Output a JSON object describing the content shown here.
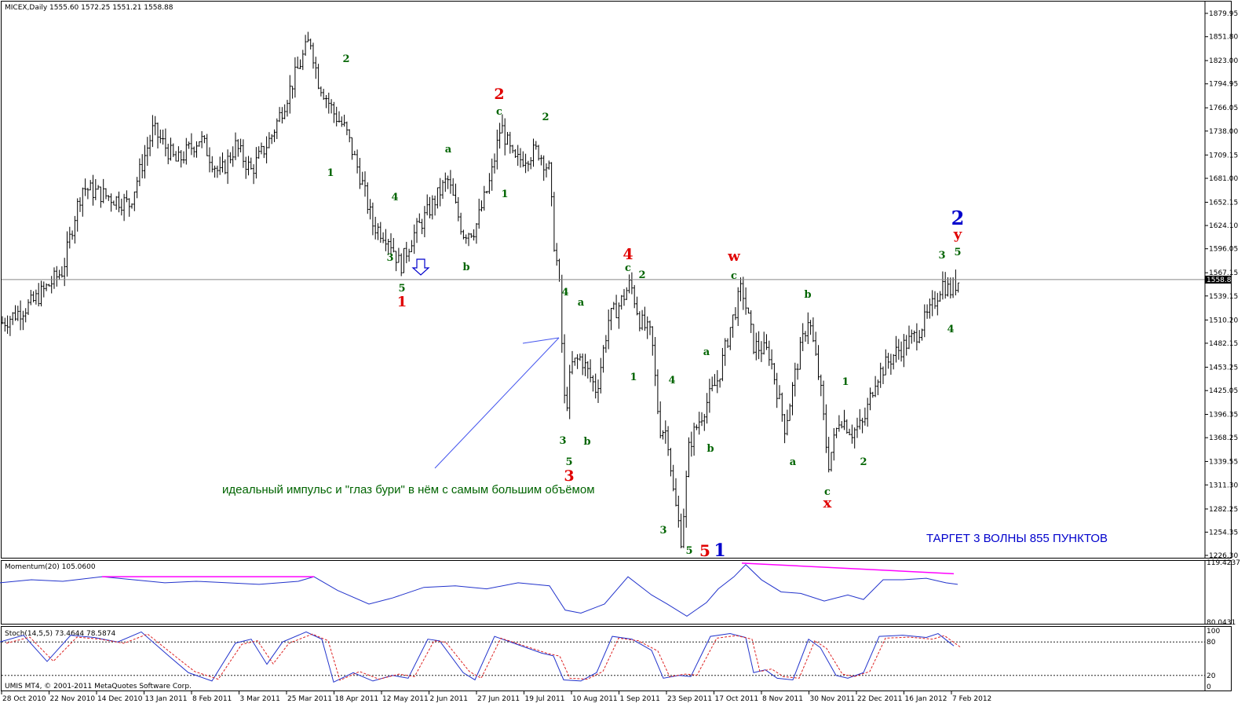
{
  "chart_data": {
    "type": "ohlc",
    "title": "MICEX,Daily  1555.60 1572.25 1551.21 1558.88",
    "price_axis": {
      "ticks": [
        "1879.95",
        "1851.80",
        "1823.00",
        "1794.95",
        "1766.05",
        "1738.00",
        "1709.15",
        "1681.00",
        "1652.15",
        "1624.10",
        "1596.05",
        "1567.15",
        "1539.15",
        "1510.20",
        "1482.15",
        "1453.25",
        "1425.05",
        "1396.35",
        "1368.25",
        "1339.55",
        "1311.30",
        "1282.25",
        "1254.35",
        "1226.30"
      ],
      "current": "1558.88",
      "range": [
        1226.3,
        1879.95
      ]
    },
    "date_axis": [
      "28 Oct 2010",
      "22 Nov 2010",
      "14 Dec 2010",
      "13 Jan 2011",
      "8 Feb 2011",
      "3 Mar 2011",
      "25 Mar 2011",
      "18 Apr 2011",
      "12 May 2011",
      "2 Jun 2011",
      "27 Jun 2011",
      "19 Jul 2011",
      "10 Aug 2011",
      "1 Sep 2011",
      "23 Sep 2011",
      "17 Oct 2011",
      "8 Nov 2011",
      "30 Nov 2011",
      "22 Dec 2011",
      "16 Jan 2012",
      "7 Feb 2012"
    ],
    "close_path": [
      [
        0,
        1505
      ],
      [
        40,
        1530
      ],
      [
        80,
        1570
      ],
      [
        95,
        1635
      ],
      [
        105,
        1670
      ],
      [
        135,
        1660
      ],
      [
        165,
        1650
      ],
      [
        195,
        1740
      ],
      [
        225,
        1700
      ],
      [
        255,
        1730
      ],
      [
        280,
        1685
      ],
      [
        300,
        1720
      ],
      [
        320,
        1690
      ],
      [
        345,
        1730
      ],
      [
        370,
        1790
      ],
      [
        395,
        1850
      ],
      [
        405,
        1800
      ],
      [
        425,
        1760
      ],
      [
        440,
        1740
      ],
      [
        460,
        1680
      ],
      [
        475,
        1625
      ],
      [
        495,
        1610
      ],
      [
        510,
        1575
      ],
      [
        525,
        1610
      ],
      [
        545,
        1640
      ],
      [
        570,
        1680
      ],
      [
        590,
        1615
      ],
      [
        605,
        1620
      ],
      [
        625,
        1680
      ],
      [
        638,
        1745
      ],
      [
        655,
        1700
      ],
      [
        685,
        1715
      ],
      [
        700,
        1690
      ],
      [
        705,
        1610
      ],
      [
        712,
        1560
      ],
      [
        720,
        1395
      ],
      [
        728,
        1455
      ],
      [
        740,
        1465
      ],
      [
        760,
        1425
      ],
      [
        775,
        1510
      ],
      [
        790,
        1530
      ],
      [
        803,
        1555
      ],
      [
        815,
        1510
      ],
      [
        830,
        1490
      ],
      [
        840,
        1380
      ],
      [
        850,
        1375
      ],
      [
        858,
        1300
      ],
      [
        868,
        1245
      ],
      [
        878,
        1360
      ],
      [
        900,
        1410
      ],
      [
        915,
        1440
      ],
      [
        930,
        1500
      ],
      [
        945,
        1550
      ],
      [
        960,
        1480
      ],
      [
        980,
        1470
      ],
      [
        1000,
        1380
      ],
      [
        1015,
        1455
      ],
      [
        1030,
        1515
      ],
      [
        1045,
        1430
      ],
      [
        1055,
        1335
      ],
      [
        1070,
        1395
      ],
      [
        1085,
        1375
      ],
      [
        1100,
        1385
      ],
      [
        1115,
        1440
      ],
      [
        1140,
        1470
      ],
      [
        1165,
        1490
      ],
      [
        1185,
        1520
      ],
      [
        1200,
        1555
      ],
      [
        1210,
        1545
      ],
      [
        1222,
        1558.88
      ]
    ],
    "wave_labels": [
      {
        "text": "1",
        "color": "#006400"
      },
      {
        "text": "2",
        "color": "#006400"
      },
      {
        "text": "3",
        "color": "#006400"
      },
      {
        "text": "4",
        "color": "#006400"
      },
      {
        "text": "5",
        "color": "#006400"
      },
      {
        "text": "1",
        "color": "#e00000"
      },
      {
        "text": "a",
        "color": "#006400"
      },
      {
        "text": "b",
        "color": "#006400"
      },
      {
        "text": "c",
        "color": "#006400"
      },
      {
        "text": "1",
        "color": "#006400"
      },
      {
        "text": "2",
        "color": "#e00000"
      },
      {
        "text": "2",
        "color": "#006400"
      },
      {
        "text": "4",
        "color": "#006400"
      },
      {
        "text": "a",
        "color": "#006400"
      },
      {
        "text": "3",
        "color": "#006400"
      },
      {
        "text": "b",
        "color": "#006400"
      },
      {
        "text": "5",
        "color": "#006400"
      },
      {
        "text": "3",
        "color": "#e00000"
      },
      {
        "text": "4",
        "color": "#e00000"
      },
      {
        "text": "c",
        "color": "#006400"
      },
      {
        "text": "2",
        "color": "#006400"
      },
      {
        "text": "1",
        "color": "#006400"
      },
      {
        "text": "4",
        "color": "#006400"
      },
      {
        "text": "3",
        "color": "#006400"
      },
      {
        "text": "5",
        "color": "#006400"
      },
      {
        "text": "5",
        "color": "#e00000"
      },
      {
        "text": "1",
        "color": "#0000cc"
      },
      {
        "text": "a",
        "color": "#006400"
      },
      {
        "text": "b",
        "color": "#006400"
      },
      {
        "text": "w",
        "color": "#e00000"
      },
      {
        "text": "c",
        "color": "#006400"
      },
      {
        "text": "b",
        "color": "#006400"
      },
      {
        "text": "a",
        "color": "#006400"
      },
      {
        "text": "c",
        "color": "#006400"
      },
      {
        "text": "x",
        "color": "#e00000"
      },
      {
        "text": "1",
        "color": "#006400"
      },
      {
        "text": "2",
        "color": "#006400"
      },
      {
        "text": "3",
        "color": "#006400"
      },
      {
        "text": "5",
        "color": "#006400"
      },
      {
        "text": "4",
        "color": "#006400"
      },
      {
        "text": "2",
        "color": "#0000cc"
      },
      {
        "text": "y",
        "color": "#e00000"
      }
    ],
    "annotations": {
      "impulse_note": "идеальный импульс и \"глаз бури\" в нём с самым большим объёмом",
      "target_note": "ТАРГЕТ 3 ВОЛНЫ 855 ПУНКТОВ"
    },
    "momentum": {
      "title": "Momentum(20) 105.0600",
      "ticks": [
        "119.4237",
        "80.0431"
      ],
      "range": [
        80.0431,
        119.4237
      ],
      "path": [
        [
          0,
          106
        ],
        [
          40,
          108
        ],
        [
          80,
          107
        ],
        [
          130,
          110
        ],
        [
          170,
          108
        ],
        [
          210,
          106
        ],
        [
          250,
          107
        ],
        [
          290,
          106
        ],
        [
          330,
          105
        ],
        [
          380,
          107
        ],
        [
          400,
          110
        ],
        [
          430,
          101
        ],
        [
          470,
          92
        ],
        [
          500,
          96
        ],
        [
          540,
          103
        ],
        [
          580,
          104
        ],
        [
          620,
          102
        ],
        [
          660,
          106
        ],
        [
          700,
          104
        ],
        [
          720,
          88
        ],
        [
          740,
          86
        ],
        [
          770,
          92
        ],
        [
          800,
          110
        ],
        [
          830,
          98
        ],
        [
          850,
          92
        ],
        [
          875,
          84
        ],
        [
          900,
          93
        ],
        [
          915,
          102
        ],
        [
          935,
          110
        ],
        [
          950,
          118
        ],
        [
          970,
          108
        ],
        [
          995,
          100
        ],
        [
          1020,
          99
        ],
        [
          1050,
          94
        ],
        [
          1080,
          98
        ],
        [
          1100,
          95
        ],
        [
          1125,
          108
        ],
        [
          1150,
          108
        ],
        [
          1180,
          109
        ],
        [
          1205,
          106
        ],
        [
          1220,
          105
        ]
      ],
      "divergences": [
        [
          [
            130,
            110
          ],
          [
            400,
            110
          ]
        ],
        [
          [
            945,
            119
          ],
          [
            1215,
            112
          ]
        ]
      ]
    },
    "stochastic": {
      "title": "Stoch(14,5,5) 73.4644 78.5874",
      "ticks": [
        "100",
        "80",
        "20",
        "0"
      ],
      "levels": [
        80,
        20
      ],
      "main": [
        [
          0,
          80
        ],
        [
          30,
          92
        ],
        [
          60,
          45
        ],
        [
          90,
          92
        ],
        [
          120,
          88
        ],
        [
          150,
          80
        ],
        [
          180,
          98
        ],
        [
          215,
          55
        ],
        [
          240,
          25
        ],
        [
          270,
          10
        ],
        [
          300,
          78
        ],
        [
          320,
          85
        ],
        [
          340,
          40
        ],
        [
          360,
          80
        ],
        [
          390,
          98
        ],
        [
          410,
          85
        ],
        [
          425,
          8
        ],
        [
          450,
          25
        ],
        [
          475,
          10
        ],
        [
          500,
          20
        ],
        [
          520,
          15
        ],
        [
          545,
          85
        ],
        [
          560,
          82
        ],
        [
          590,
          25
        ],
        [
          605,
          12
        ],
        [
          630,
          90
        ],
        [
          660,
          75
        ],
        [
          690,
          60
        ],
        [
          705,
          55
        ],
        [
          718,
          12
        ],
        [
          740,
          10
        ],
        [
          760,
          25
        ],
        [
          780,
          90
        ],
        [
          805,
          85
        ],
        [
          830,
          65
        ],
        [
          845,
          15
        ],
        [
          865,
          20
        ],
        [
          880,
          18
        ],
        [
          905,
          90
        ],
        [
          930,
          95
        ],
        [
          950,
          88
        ],
        [
          960,
          25
        ],
        [
          975,
          30
        ],
        [
          990,
          15
        ],
        [
          1010,
          12
        ],
        [
          1030,
          85
        ],
        [
          1045,
          70
        ],
        [
          1065,
          20
        ],
        [
          1080,
          15
        ],
        [
          1100,
          25
        ],
        [
          1120,
          90
        ],
        [
          1150,
          92
        ],
        [
          1180,
          88
        ],
        [
          1195,
          95
        ],
        [
          1215,
          73
        ]
      ]
    }
  },
  "footer": {
    "copyright": "UMIS MT4, © 2001-2011 MetaQuotes Software Corp."
  }
}
